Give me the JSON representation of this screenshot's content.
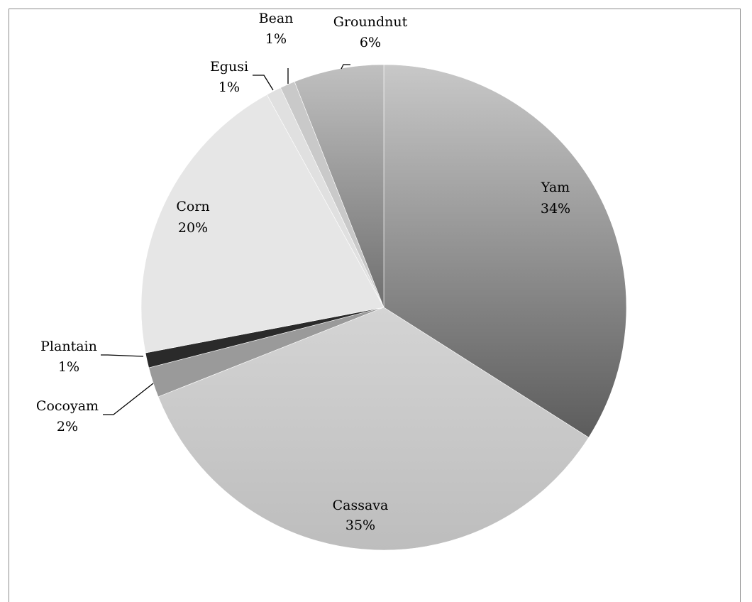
{
  "chart_data": {
    "type": "pie",
    "title": "",
    "slices": [
      {
        "label": "Yam",
        "value": 34,
        "display": "34%",
        "color": "#8e8e8e"
      },
      {
        "label": "Cassava",
        "value": 35,
        "display": "35%",
        "color": "#c7c7c7"
      },
      {
        "label": "Cocoyam",
        "value": 2,
        "display": "2%",
        "color": "#9a9a9a"
      },
      {
        "label": "Plantain",
        "value": 1,
        "display": "1%",
        "color": "#2a2a2a"
      },
      {
        "label": "Corn",
        "value": 20,
        "display": "20%",
        "color": "#e6e6e6"
      },
      {
        "label": "Egusi",
        "value": 1,
        "display": "1%",
        "color": "#e0e0e0"
      },
      {
        "label": "Bean",
        "value": 1,
        "display": "1%",
        "color": "#c9c9c9"
      },
      {
        "label": "Groundnut",
        "value": 6,
        "display": "6%",
        "color": "#a8a8a8"
      }
    ],
    "legend": "none",
    "label_style": "category name and percentage on slices, leader lines for small slices"
  }
}
